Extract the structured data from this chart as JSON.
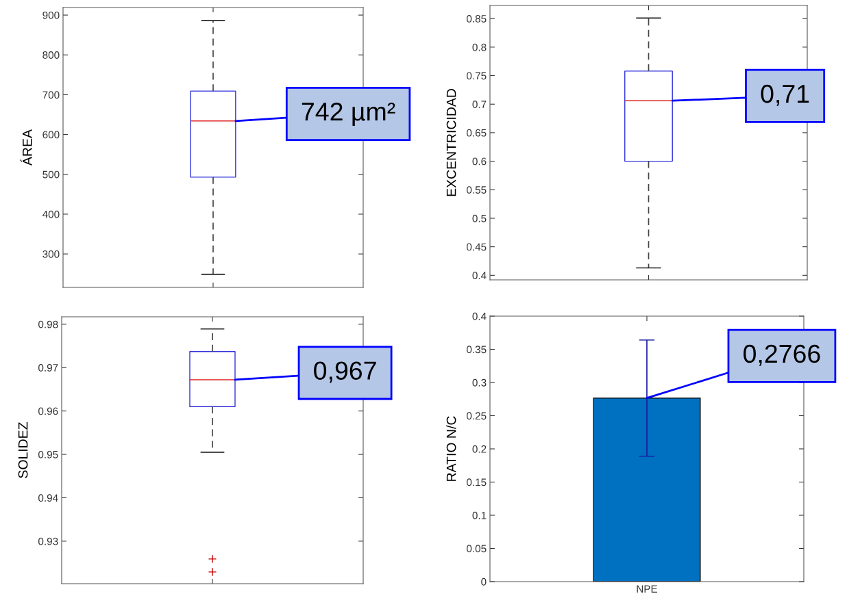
{
  "chart_data": [
    {
      "type": "box",
      "ylabel": "ÁREA",
      "categories": [
        null
      ],
      "boxes": [
        {
          "low": 249,
          "q1": 493,
          "median": 634,
          "q3": 709,
          "high": 886
        }
      ],
      "ylim": [
        216,
        919
      ],
      "yticks": [
        300,
        400,
        500,
        600,
        700,
        800,
        900
      ],
      "annotations": [
        "742 µm²"
      ]
    },
    {
      "type": "box",
      "ylabel": "EXCENTRICIDAD",
      "categories": [
        null
      ],
      "boxes": [
        {
          "low": 0.413,
          "q1": 0.6,
          "median": 0.706,
          "q3": 0.758,
          "high": 0.851
        }
      ],
      "ylim": [
        0.392,
        0.873
      ],
      "yticks": [
        0.4,
        0.45,
        0.5,
        0.55,
        0.6,
        0.65,
        0.7,
        0.75,
        0.8,
        0.85
      ],
      "annotations": [
        "0,71"
      ]
    },
    {
      "type": "box",
      "ylabel": "SOLIDEZ",
      "categories": [
        null
      ],
      "boxes": [
        {
          "low": 0.9505,
          "q1": 0.961,
          "median": 0.9672,
          "q3": 0.9737,
          "high": 0.9789,
          "outliers": [
            0.9259,
            0.9229
          ]
        }
      ],
      "ylim": [
        0.9202,
        0.9817
      ],
      "yticks": [
        0.93,
        0.94,
        0.95,
        0.96,
        0.97,
        0.98
      ],
      "annotations": [
        "0,967"
      ]
    },
    {
      "type": "bar",
      "ylabel": "RATIO N/C",
      "categories": [
        "NPE"
      ],
      "series": [
        {
          "color": "#0070c0",
          "values": [
            0.2766
          ],
          "errors": [
            [
              0.189,
              0.364
            ]
          ]
        }
      ],
      "ylim": [
        0,
        0.4
      ],
      "yticks": [
        0,
        0.05,
        0.1,
        0.15,
        0.2,
        0.25,
        0.3,
        0.35,
        0.4
      ],
      "annotations": [
        "0,2766"
      ]
    }
  ]
}
